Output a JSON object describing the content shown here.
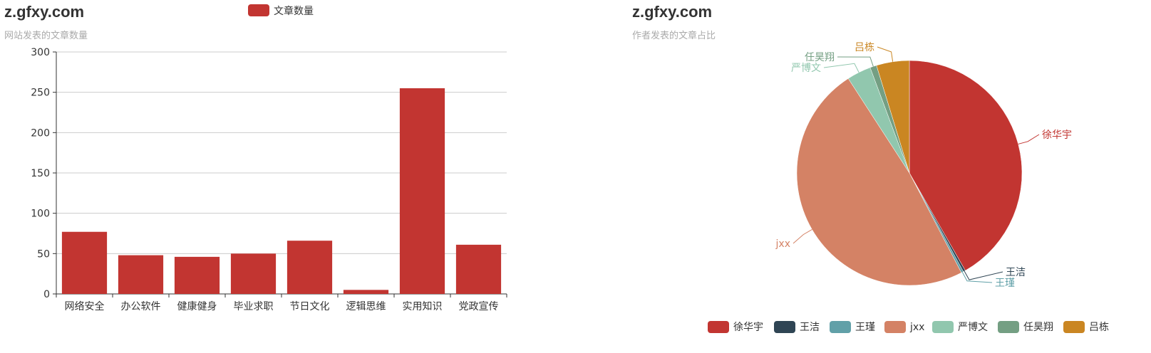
{
  "chart_data": [
    {
      "type": "bar",
      "title": "z.gfxy.com",
      "subtitle": "网站发表的文章数量",
      "legend": [
        {
          "name": "文章数量",
          "color": "#c23531"
        }
      ],
      "legend_position": "top-center",
      "categories": [
        "网络安全",
        "办公软件",
        "健康健身",
        "毕业求职",
        "节日文化",
        "逻辑思维",
        "实用知识",
        "党政宣传"
      ],
      "series": [
        {
          "name": "文章数量",
          "color": "#c23531",
          "values": [
            77,
            48,
            46,
            50,
            66,
            5,
            255,
            61
          ]
        }
      ],
      "ylim": [
        0,
        300
      ],
      "yticks": [
        0,
        50,
        100,
        150,
        200,
        250,
        300
      ],
      "grid": true
    },
    {
      "type": "pie",
      "title": "z.gfxy.com",
      "subtitle": "作者发表的文章占比",
      "legend_position": "bottom-right",
      "slices": [
        {
          "name": "徐华宇",
          "value": 265,
          "color": "#c23531"
        },
        {
          "name": "王洁",
          "value": 2,
          "color": "#2f4554"
        },
        {
          "name": "王瑾",
          "value": 2,
          "color": "#61a0a8"
        },
        {
          "name": "jxx",
          "value": 308,
          "color": "#d48265"
        },
        {
          "name": "严博文",
          "value": 22,
          "color": "#91c7ae"
        },
        {
          "name": "任昊翔",
          "value": 6,
          "color": "#749f83"
        },
        {
          "name": "吕栋",
          "value": 30,
          "color": "#ca8622"
        }
      ]
    }
  ]
}
